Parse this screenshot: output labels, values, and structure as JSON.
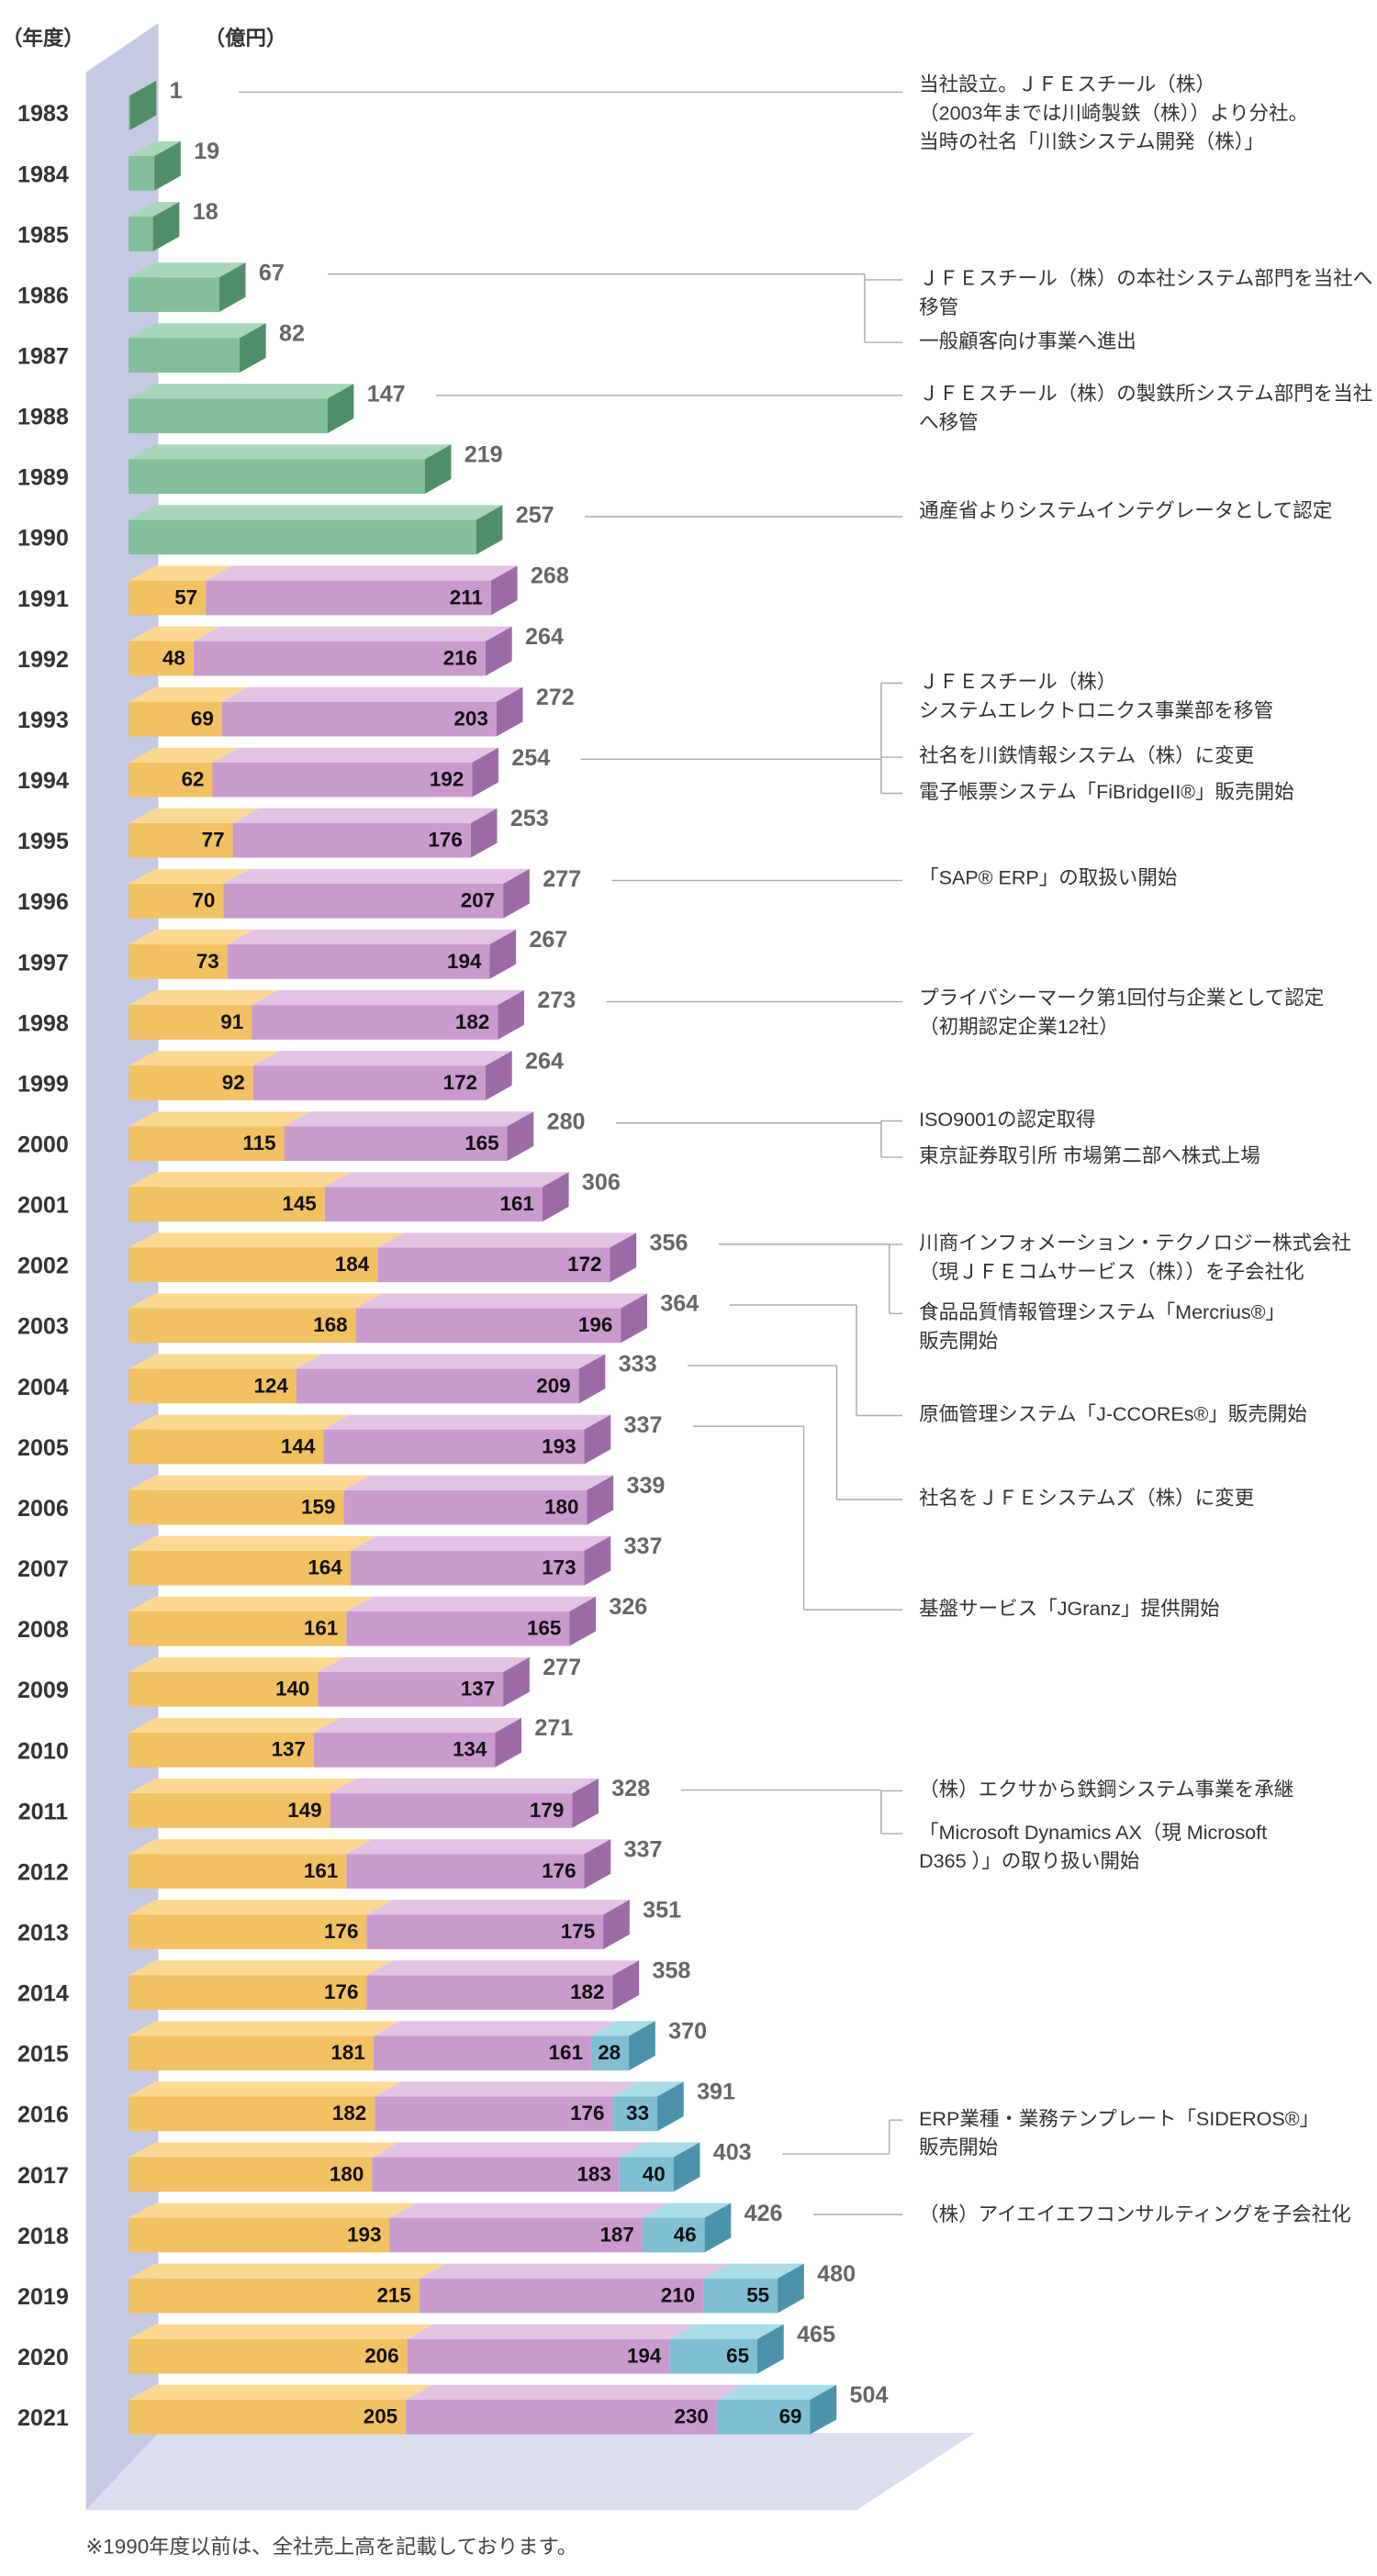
{
  "chart_data": {
    "type": "bar",
    "orientation": "horizontal",
    "stacked": true,
    "year_axis_label": "（年度）",
    "value_axis_label": "（億円）",
    "footnote": "※1990年度以前は、全社売上高を記載しております。",
    "categories": [
      "1983",
      "1984",
      "1985",
      "1986",
      "1987",
      "1988",
      "1989",
      "1990",
      "1991",
      "1992",
      "1993",
      "1994",
      "1995",
      "1996",
      "1997",
      "1998",
      "1999",
      "2000",
      "2001",
      "2002",
      "2003",
      "2004",
      "2005",
      "2006",
      "2007",
      "2008",
      "2009",
      "2010",
      "2011",
      "2012",
      "2013",
      "2014",
      "2015",
      "2016",
      "2017",
      "2018",
      "2019",
      "2020",
      "2021"
    ],
    "xlim": [
      0,
      520
    ],
    "series": [
      {
        "color": "#82bf9a",
        "top_color": "#a9d6ba",
        "side_color": "#4f8f68",
        "values": [
          1,
          19,
          18,
          67,
          82,
          147,
          219,
          257,
          null,
          null,
          null,
          null,
          null,
          null,
          null,
          null,
          null,
          null,
          null,
          null,
          null,
          null,
          null,
          null,
          null,
          null,
          null,
          null,
          null,
          null,
          null,
          null,
          null,
          null,
          null,
          null,
          null,
          null,
          null
        ]
      },
      {
        "color": "#f2c162",
        "top_color": "#fbd993",
        "side_color": "#d79e38",
        "values": [
          null,
          null,
          null,
          null,
          null,
          null,
          null,
          null,
          57,
          48,
          69,
          62,
          77,
          70,
          73,
          91,
          92,
          115,
          145,
          184,
          168,
          124,
          144,
          159,
          164,
          161,
          140,
          137,
          149,
          161,
          176,
          176,
          181,
          182,
          180,
          193,
          215,
          206,
          205
        ]
      },
      {
        "color": "#c99bcd",
        "top_color": "#e2c3e4",
        "side_color": "#9c6aa7",
        "values": [
          null,
          null,
          null,
          null,
          null,
          null,
          null,
          null,
          211,
          216,
          203,
          192,
          176,
          207,
          194,
          182,
          172,
          165,
          161,
          172,
          196,
          209,
          193,
          180,
          173,
          165,
          137,
          134,
          179,
          176,
          175,
          182,
          161,
          176,
          183,
          187,
          210,
          194,
          230
        ]
      },
      {
        "color": "#7fbfd1",
        "top_color": "#a8dce7",
        "side_color": "#4b93ab",
        "values": [
          null,
          null,
          null,
          null,
          null,
          null,
          null,
          null,
          null,
          null,
          null,
          null,
          null,
          null,
          null,
          null,
          null,
          null,
          null,
          null,
          null,
          null,
          null,
          null,
          null,
          null,
          null,
          null,
          null,
          null,
          null,
          null,
          28,
          33,
          40,
          46,
          55,
          65,
          69
        ]
      }
    ],
    "totals": [
      null,
      null,
      null,
      null,
      null,
      null,
      null,
      null,
      268,
      264,
      272,
      254,
      253,
      277,
      267,
      273,
      264,
      280,
      306,
      356,
      364,
      333,
      337,
      339,
      337,
      326,
      277,
      271,
      328,
      337,
      351,
      358,
      370,
      391,
      403,
      426,
      480,
      465,
      504
    ],
    "notes": [
      [
        [
          "当社設立。ＪＦＥスチール（株）",
          "（2003年までは川崎製鉄（株））より分社。",
          "当時の社名「川鉄システム開発（株）」"
        ]
      ],
      [
        [
          "ＪＦＥスチール（株）の本社システム部門を当社へ",
          "移管"
        ],
        [
          "一般顧客向け事業へ進出"
        ]
      ],
      [
        [
          "ＪＦＥスチール（株）の製鉄所システム部門を当社",
          "へ移管"
        ]
      ],
      [
        [
          "通産省よりシステムインテグレータとして認定"
        ]
      ],
      [
        [
          "ＪＦＥスチール（株）",
          "システムエレクトロニクス事業部を移管"
        ],
        [
          "社名を川鉄情報システム（株）に変更"
        ],
        [
          "電子帳票システム「FiBridgeII®」販売開始"
        ]
      ],
      [
        [
          "「SAP® ERP」の取扱い開始"
        ]
      ],
      [
        [
          "プライバシーマーク第1回付与企業として認定",
          "（初期認定企業12社）"
        ]
      ],
      [
        [
          "ISO9001の認定取得"
        ],
        [
          "東京証券取引所 市場第二部へ株式上場"
        ]
      ],
      [
        [
          "川商インフォメーション・テクノロジー株式会社",
          "（現ＪＦＥコムサービス（株））を子会社化"
        ],
        [
          "食品品質情報管理システム「Mercrius®」",
          "販売開始"
        ]
      ],
      [
        [
          "原価管理システム「J-CCOREs®」販売開始"
        ]
      ],
      [
        [
          "社名をＪＦＥシステムズ（株）に変更"
        ]
      ],
      [
        [
          "基盤サービス「JGranz」提供開始"
        ]
      ],
      [
        [
          "（株）エクサから鉄鋼システム事業を承継"
        ],
        [
          "「Microsoft Dynamics AX（現 Microsoft",
          "D365 ）」の取り扱い開始"
        ]
      ],
      [
        [
          "ERP業種・業務テンプレート「SIDEROS®」",
          "販売開始"
        ]
      ],
      [
        [
          "（株）アイエイエフコンサルティングを子会社化"
        ]
      ]
    ]
  }
}
